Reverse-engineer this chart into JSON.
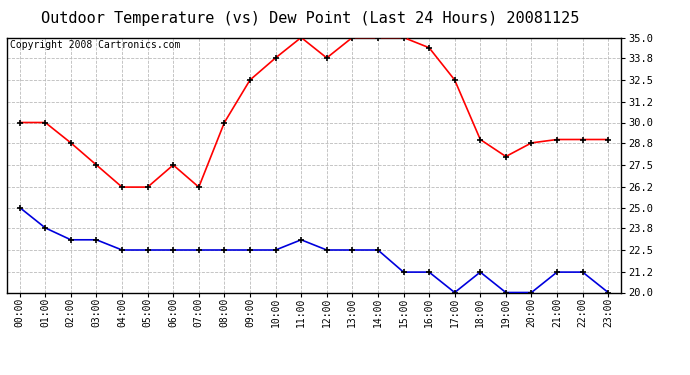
{
  "title": "Outdoor Temperature (vs) Dew Point (Last 24 Hours) 20081125",
  "copyright_text": "Copyright 2008 Cartronics.com",
  "hours": [
    "00:00",
    "01:00",
    "02:00",
    "03:00",
    "04:00",
    "05:00",
    "06:00",
    "07:00",
    "08:00",
    "09:00",
    "10:00",
    "11:00",
    "12:00",
    "13:00",
    "14:00",
    "15:00",
    "16:00",
    "17:00",
    "18:00",
    "19:00",
    "20:00",
    "21:00",
    "22:00",
    "23:00"
  ],
  "temp_red": [
    30.0,
    30.0,
    28.8,
    27.5,
    26.2,
    26.2,
    27.5,
    26.2,
    30.0,
    32.5,
    33.8,
    35.0,
    33.8,
    35.0,
    35.0,
    35.0,
    34.4,
    32.5,
    29.0,
    28.0,
    28.8,
    29.0,
    29.0,
    29.0
  ],
  "temp_blue": [
    25.0,
    23.8,
    23.1,
    23.1,
    22.5,
    22.5,
    22.5,
    22.5,
    22.5,
    22.5,
    22.5,
    23.1,
    22.5,
    22.5,
    22.5,
    21.2,
    21.2,
    20.0,
    21.2,
    20.0,
    20.0,
    21.2,
    21.2,
    20.0
  ],
  "ylim_min": 20.0,
  "ylim_max": 35.0,
  "yticks": [
    20.0,
    21.2,
    22.5,
    23.8,
    25.0,
    26.2,
    27.5,
    28.8,
    30.0,
    31.2,
    32.5,
    33.8,
    35.0
  ],
  "ytick_labels": [
    "20.0",
    "21.2",
    "22.5",
    "23.8",
    "25.0",
    "26.2",
    "27.5",
    "28.8",
    "30.0",
    "31.2",
    "32.5",
    "33.8",
    "35.0"
  ],
  "red_color": "#ff0000",
  "blue_color": "#0000dd",
  "bg_color": "#ffffff",
  "grid_color": "#bbbbbb",
  "title_fontsize": 11,
  "copyright_fontsize": 7,
  "tick_fontsize": 7,
  "ytick_fontsize": 7.5
}
